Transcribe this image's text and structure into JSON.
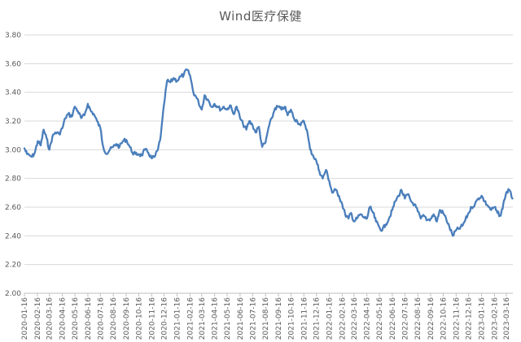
{
  "chart_data": {
    "type": "line",
    "title": "Wind医疗保健",
    "xlabel": "",
    "ylabel": "",
    "ylim": [
      2.0,
      3.8
    ],
    "y_ticks": [
      "2.00",
      "2.20",
      "2.40",
      "2.60",
      "2.80",
      "3.00",
      "3.20",
      "3.40",
      "3.60",
      "3.80"
    ],
    "x_ticks": [
      "2020-01-16",
      "2020-02-16",
      "2020-03-16",
      "2020-04-16",
      "2020-05-16",
      "2020-06-16",
      "2020-07-16",
      "2020-08-16",
      "2020-09-16",
      "2020-10-16",
      "2020-11-16",
      "2020-12-16",
      "2021-01-16",
      "2021-02-16",
      "2021-03-16",
      "2021-04-16",
      "2021-05-16",
      "2021-06-16",
      "2021-07-16",
      "2021-08-16",
      "2021-09-16",
      "2021-10-16",
      "2021-11-16",
      "2021-12-16",
      "2022-01-16",
      "2022-02-16",
      "2022-03-16",
      "2022-04-16",
      "2022-05-16",
      "2022-06-16",
      "2022-07-16",
      "2022-08-16",
      "2022-09-16",
      "2022-10-16",
      "2022-11-16",
      "2022-12-16",
      "2023-01-16",
      "2023-02-16",
      "2023-03-16"
    ],
    "grid": true,
    "color": "#4a7ebb",
    "series": [
      {
        "points": [
          [
            "2020-01-16",
            3.01
          ],
          [
            "2020-01-22",
            2.97
          ],
          [
            "2020-02-03",
            2.95
          ],
          [
            "2020-02-10",
            2.98
          ],
          [
            "2020-02-17",
            3.06
          ],
          [
            "2020-02-24",
            3.03
          ],
          [
            "2020-03-02",
            3.14
          ],
          [
            "2020-03-09",
            3.08
          ],
          [
            "2020-03-16",
            3.0
          ],
          [
            "2020-03-23",
            3.09
          ],
          [
            "2020-03-30",
            3.12
          ],
          [
            "2020-04-08",
            3.11
          ],
          [
            "2020-04-16",
            3.15
          ],
          [
            "2020-04-23",
            3.22
          ],
          [
            "2020-04-30",
            3.25
          ],
          [
            "2020-05-08",
            3.23
          ],
          [
            "2020-05-16",
            3.3
          ],
          [
            "2020-05-23",
            3.27
          ],
          [
            "2020-05-31",
            3.22
          ],
          [
            "2020-06-08",
            3.24
          ],
          [
            "2020-06-16",
            3.32
          ],
          [
            "2020-06-23",
            3.27
          ],
          [
            "2020-06-30",
            3.25
          ],
          [
            "2020-07-08",
            3.2
          ],
          [
            "2020-07-16",
            3.15
          ],
          [
            "2020-07-23",
            3.02
          ],
          [
            "2020-07-31",
            2.97
          ],
          [
            "2020-08-08",
            3.0
          ],
          [
            "2020-08-16",
            3.02
          ],
          [
            "2020-08-23",
            3.04
          ],
          [
            "2020-08-31",
            3.02
          ],
          [
            "2020-09-08",
            3.06
          ],
          [
            "2020-09-16",
            3.07
          ],
          [
            "2020-09-23",
            3.03
          ],
          [
            "2020-10-01",
            2.98
          ],
          [
            "2020-10-08",
            2.97
          ],
          [
            "2020-10-16",
            2.97
          ],
          [
            "2020-10-23",
            2.96
          ],
          [
            "2020-10-31",
            3.0
          ],
          [
            "2020-11-08",
            2.98
          ],
          [
            "2020-11-16",
            2.94
          ],
          [
            "2020-11-23",
            2.95
          ],
          [
            "2020-12-01",
            3.0
          ],
          [
            "2020-12-08",
            3.1
          ],
          [
            "2020-12-16",
            3.32
          ],
          [
            "2020-12-23",
            3.48
          ],
          [
            "2020-12-31",
            3.47
          ],
          [
            "2021-01-08",
            3.5
          ],
          [
            "2021-01-16",
            3.48
          ],
          [
            "2021-01-24",
            3.51
          ],
          [
            "2021-02-01",
            3.52
          ],
          [
            "2021-02-08",
            3.56
          ],
          [
            "2021-02-16",
            3.52
          ],
          [
            "2021-02-24",
            3.4
          ],
          [
            "2021-03-04",
            3.36
          ],
          [
            "2021-03-16",
            3.28
          ],
          [
            "2021-03-23",
            3.38
          ],
          [
            "2021-03-31",
            3.35
          ],
          [
            "2021-04-08",
            3.3
          ],
          [
            "2021-04-16",
            3.32
          ],
          [
            "2021-04-23",
            3.3
          ],
          [
            "2021-05-01",
            3.28
          ],
          [
            "2021-05-08",
            3.3
          ],
          [
            "2021-05-16",
            3.28
          ],
          [
            "2021-05-23",
            3.31
          ],
          [
            "2021-05-31",
            3.25
          ],
          [
            "2021-06-08",
            3.3
          ],
          [
            "2021-06-16",
            3.22
          ],
          [
            "2021-06-23",
            3.18
          ],
          [
            "2021-07-01",
            3.14
          ],
          [
            "2021-07-08",
            3.2
          ],
          [
            "2021-07-16",
            3.17
          ],
          [
            "2021-07-23",
            3.12
          ],
          [
            "2021-07-31",
            3.16
          ],
          [
            "2021-08-08",
            3.02
          ],
          [
            "2021-08-16",
            3.05
          ],
          [
            "2021-08-23",
            3.15
          ],
          [
            "2021-08-31",
            3.22
          ],
          [
            "2021-09-08",
            3.29
          ],
          [
            "2021-09-16",
            3.3
          ],
          [
            "2021-09-23",
            3.28
          ],
          [
            "2021-10-01",
            3.3
          ],
          [
            "2021-10-08",
            3.24
          ],
          [
            "2021-10-16",
            3.28
          ],
          [
            "2021-10-23",
            3.22
          ],
          [
            "2021-10-31",
            3.2
          ],
          [
            "2021-11-08",
            3.17
          ],
          [
            "2021-11-16",
            3.2
          ],
          [
            "2021-11-23",
            3.14
          ],
          [
            "2021-12-01",
            3.0
          ],
          [
            "2021-12-08",
            2.96
          ],
          [
            "2021-12-16",
            2.92
          ],
          [
            "2021-12-23",
            2.85
          ],
          [
            "2021-12-31",
            2.8
          ],
          [
            "2022-01-08",
            2.86
          ],
          [
            "2022-01-16",
            2.78
          ],
          [
            "2022-01-23",
            2.7
          ],
          [
            "2022-01-31",
            2.72
          ],
          [
            "2022-02-08",
            2.68
          ],
          [
            "2022-02-16",
            2.62
          ],
          [
            "2022-02-23",
            2.55
          ],
          [
            "2022-03-03",
            2.52
          ],
          [
            "2022-03-09",
            2.56
          ],
          [
            "2022-03-16",
            2.5
          ],
          [
            "2022-03-23",
            2.52
          ],
          [
            "2022-03-31",
            2.55
          ],
          [
            "2022-04-08",
            2.53
          ],
          [
            "2022-04-16",
            2.52
          ],
          [
            "2022-04-23",
            2.6
          ],
          [
            "2022-05-01",
            2.56
          ],
          [
            "2022-05-08",
            2.5
          ],
          [
            "2022-05-16",
            2.46
          ],
          [
            "2022-05-23",
            2.44
          ],
          [
            "2022-05-31",
            2.48
          ],
          [
            "2022-06-08",
            2.52
          ],
          [
            "2022-06-16",
            2.58
          ],
          [
            "2022-06-23",
            2.64
          ],
          [
            "2022-07-01",
            2.68
          ],
          [
            "2022-07-08",
            2.72
          ],
          [
            "2022-07-16",
            2.66
          ],
          [
            "2022-07-23",
            2.69
          ],
          [
            "2022-07-31",
            2.64
          ],
          [
            "2022-08-08",
            2.62
          ],
          [
            "2022-08-16",
            2.57
          ],
          [
            "2022-08-23",
            2.52
          ],
          [
            "2022-08-31",
            2.54
          ],
          [
            "2022-09-08",
            2.51
          ],
          [
            "2022-09-16",
            2.52
          ],
          [
            "2022-09-23",
            2.55
          ],
          [
            "2022-10-01",
            2.5
          ],
          [
            "2022-10-08",
            2.58
          ],
          [
            "2022-10-16",
            2.56
          ],
          [
            "2022-10-23",
            2.52
          ],
          [
            "2022-10-31",
            2.46
          ],
          [
            "2022-11-08",
            2.4
          ],
          [
            "2022-11-16",
            2.44
          ],
          [
            "2022-11-23",
            2.45
          ],
          [
            "2022-12-01",
            2.47
          ],
          [
            "2022-12-08",
            2.51
          ],
          [
            "2022-12-16",
            2.56
          ],
          [
            "2022-12-23",
            2.6
          ],
          [
            "2022-12-31",
            2.62
          ],
          [
            "2023-01-08",
            2.66
          ],
          [
            "2023-01-16",
            2.68
          ],
          [
            "2023-01-23",
            2.64
          ],
          [
            "2023-01-31",
            2.61
          ],
          [
            "2023-02-08",
            2.58
          ],
          [
            "2023-02-16",
            2.6
          ],
          [
            "2023-02-23",
            2.56
          ],
          [
            "2023-03-03",
            2.54
          ],
          [
            "2023-03-09",
            2.62
          ],
          [
            "2023-03-16",
            2.7
          ],
          [
            "2023-03-23",
            2.72
          ],
          [
            "2023-03-31",
            2.66
          ]
        ]
      }
    ]
  }
}
